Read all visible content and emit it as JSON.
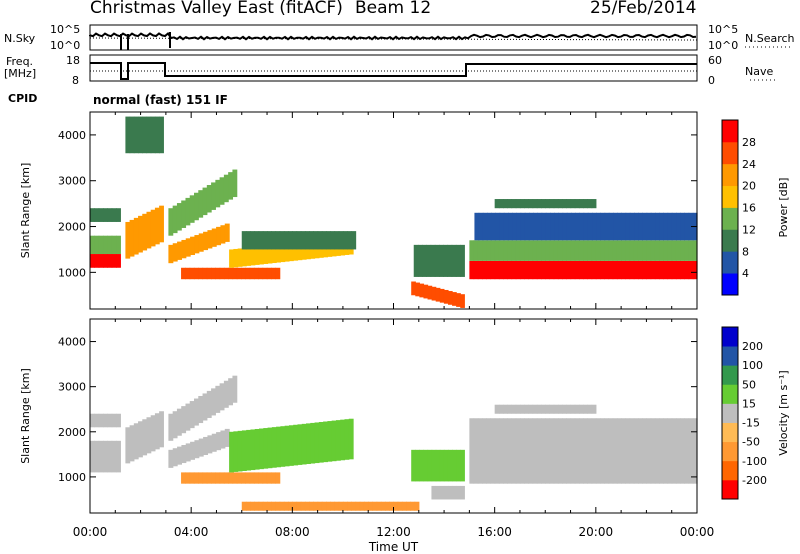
{
  "header": {
    "radar_title": "Christmas Valley East (fitACF)",
    "beam": "Beam 12",
    "date": "25/Feb/2014"
  },
  "summary": {
    "nsky_label": "N.Sky",
    "nsky_ticks": [
      "10^5",
      "10^0"
    ],
    "nsearch_label": "N.Search",
    "nsearch_ticks": [
      "10^5",
      "10^0"
    ],
    "freq_label": "Freq.",
    "freq_unit": "[MHz]",
    "freq_ticks": [
      "18",
      "8"
    ],
    "nave_label": "Nave",
    "nave_ticks": [
      "60",
      "0"
    ],
    "cpid_label": "CPID",
    "cpid_value": "normal (fast) 151 IF"
  },
  "colors": {
    "power": [
      "#0000ff",
      "#2255a6",
      "#3a7a4e",
      "#6cb14f",
      "#ffc000",
      "#ff9900",
      "#ff4d00",
      "#ff0000"
    ],
    "velocity": [
      "#ff0000",
      "#ff6600",
      "#ff9933",
      "#ffbb55",
      "#bebebe",
      "#66cc33",
      "#33994d",
      "#2255a6",
      "#0000cc"
    ],
    "nsky": "#000000"
  },
  "chart_data": [
    {
      "type": "heatmap",
      "name": "power",
      "xlabel": "",
      "ylabel": "Slant Range [km]",
      "ylim": [
        200,
        4500
      ],
      "yticks": [
        1000,
        2000,
        3000,
        4000
      ],
      "xlim": [
        0,
        24
      ],
      "colorbar_label": "Power [dB]",
      "colorbar_ticks": [
        "4",
        "8",
        "12",
        "16",
        "20",
        "24",
        "28"
      ],
      "bands": [
        {
          "t": [
            0.0,
            1.2
          ],
          "r": [
            1100,
            1400
          ],
          "level": 28
        },
        {
          "t": [
            0.0,
            1.2
          ],
          "r": [
            1400,
            1800
          ],
          "level": 14
        },
        {
          "t": [
            0.0,
            1.2
          ],
          "r": [
            2100,
            2400
          ],
          "level": 10
        },
        {
          "t": [
            1.4,
            2.9
          ],
          "r": [
            1300,
            2100
          ],
          "level": 22,
          "slope": 400
        },
        {
          "t": [
            1.4,
            2.9
          ],
          "r": [
            3600,
            4400
          ],
          "level": 8
        },
        {
          "t": [
            3.1,
            5.5
          ],
          "r": [
            1200,
            1600
          ],
          "level": 22,
          "slope": 500
        },
        {
          "t": [
            3.1,
            5.8
          ],
          "r": [
            1800,
            2400
          ],
          "level": 12,
          "slope": 900
        },
        {
          "t": [
            3.6,
            7.5
          ],
          "r": [
            850,
            1100
          ],
          "level": 24
        },
        {
          "t": [
            5.5,
            10.4
          ],
          "r": [
            1100,
            1500
          ],
          "level": 18,
          "slope": 300
        },
        {
          "t": [
            6.0,
            10.5
          ],
          "r": [
            1500,
            1900
          ],
          "level": 10
        },
        {
          "t": [
            12.7,
            14.8
          ],
          "r": [
            500,
            800
          ],
          "level": 24,
          "slope": -300
        },
        {
          "t": [
            12.8,
            14.8
          ],
          "r": [
            900,
            1600
          ],
          "level": 10
        },
        {
          "t": [
            15.0,
            24.0
          ],
          "r": [
            850,
            1250
          ],
          "level": 28
        },
        {
          "t": [
            15.0,
            24.0
          ],
          "r": [
            1250,
            1700
          ],
          "level": 14
        },
        {
          "t": [
            15.2,
            24.0
          ],
          "r": [
            1700,
            2300
          ],
          "level": 6
        },
        {
          "t": [
            16.0,
            20.0
          ],
          "r": [
            2400,
            2600
          ],
          "level": 8
        }
      ]
    },
    {
      "type": "heatmap",
      "name": "velocity",
      "xlabel": "Time UT",
      "ylabel": "Slant Range [km]",
      "ylim": [
        200,
        4500
      ],
      "yticks": [
        1000,
        2000,
        3000,
        4000
      ],
      "xlim": [
        0,
        24
      ],
      "xticks": [
        "00:00",
        "04:00",
        "08:00",
        "12:00",
        "16:00",
        "20:00",
        "00:00"
      ],
      "colorbar_label": "Velocity [m s^-1]",
      "colorbar_ticks": [
        "-200",
        "-100",
        "-50",
        "-15",
        "15",
        "50",
        "100",
        "200"
      ],
      "bands": [
        {
          "t": [
            0.0,
            1.2
          ],
          "r": [
            1100,
            1800
          ],
          "level": 0
        },
        {
          "t": [
            0.0,
            1.2
          ],
          "r": [
            2100,
            2400
          ],
          "level": 0
        },
        {
          "t": [
            1.4,
            2.9
          ],
          "r": [
            1300,
            2100
          ],
          "level": 0,
          "slope": 400
        },
        {
          "t": [
            3.1,
            5.8
          ],
          "r": [
            1800,
            2400
          ],
          "level": 0,
          "slope": 900
        },
        {
          "t": [
            3.1,
            5.5
          ],
          "r": [
            1200,
            1600
          ],
          "level": 0,
          "slope": 500
        },
        {
          "t": [
            3.6,
            7.5
          ],
          "r": [
            850,
            1100
          ],
          "level": -60
        },
        {
          "t": [
            5.5,
            10.4
          ],
          "r": [
            1100,
            2000
          ],
          "level": 40,
          "slope": 300
        },
        {
          "t": [
            6.0,
            13.0
          ],
          "r": [
            250,
            450
          ],
          "level": -60
        },
        {
          "t": [
            12.7,
            14.8
          ],
          "r": [
            900,
            1600
          ],
          "level": 40
        },
        {
          "t": [
            13.5,
            14.8
          ],
          "r": [
            500,
            800
          ],
          "level": 0
        },
        {
          "t": [
            15.0,
            24.0
          ],
          "r": [
            850,
            2300
          ],
          "level": 0
        },
        {
          "t": [
            16.0,
            20.0
          ],
          "r": [
            2400,
            2600
          ],
          "level": 0
        }
      ]
    }
  ]
}
